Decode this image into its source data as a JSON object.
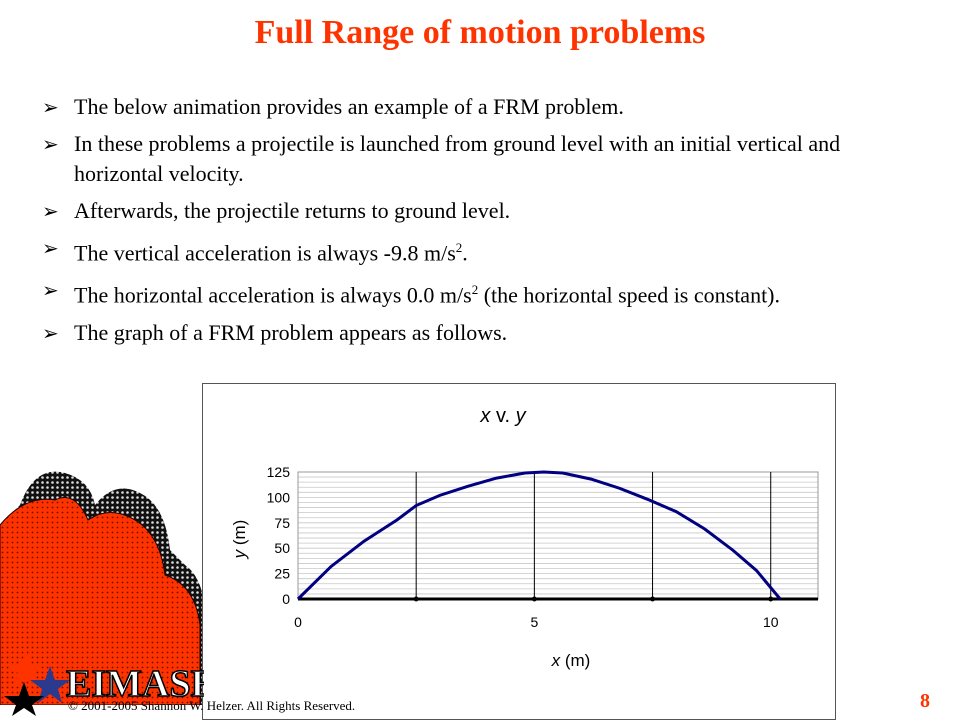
{
  "slide": {
    "title": "Full Range of motion  problems",
    "bullets": [
      {
        "text": "The below animation provides an example of a FRM problem."
      },
      {
        "text": "In these problems a projectile is launched from ground level with an initial vertical and horizontal velocity."
      },
      {
        "text": "Afterwards, the projectile returns to ground level."
      },
      {
        "text": "The vertical acceleration is always -9.8 m/s",
        "sup": "2",
        "after": "."
      },
      {
        "text": "The horizontal acceleration is always 0.0 m/s",
        "sup": "2",
        "after": " (the horizontal speed is constant)."
      },
      {
        "text": "The graph of a FRM problem appears as follows."
      }
    ],
    "bullet_icon": "arrow-bullet-icon",
    "logo_text": "EIMASES",
    "footer": "© 2001-2005 Shannon W. Helzer.  All Rights Reserved.",
    "page_number": "8",
    "colors": {
      "title": "#ff3300",
      "curve": "#000080",
      "mountain": "#ff3300"
    }
  },
  "chart_data": {
    "type": "line",
    "title_x": "x",
    "title_mid": " v. ",
    "title_y": "y",
    "xlabel_var": "x",
    "xlabel_unit": " (m)",
    "ylabel_var": "y",
    "ylabel_unit": " (m)",
    "xlim": [
      0,
      11
    ],
    "ylim": [
      0,
      125
    ],
    "x_ticks": [
      0,
      5,
      10
    ],
    "y_ticks": [
      0,
      25,
      50,
      75,
      100,
      125
    ],
    "grid": true,
    "series": [
      {
        "x": [
          0,
          0.7,
          1.4,
          2.1,
          2.5,
          3.0,
          3.6,
          4.2,
          4.8,
          5.2,
          5.6,
          6.2,
          6.8,
          7.4,
          8.0,
          8.6,
          9.2,
          9.7,
          10.2
        ],
        "y": [
          0,
          32,
          57,
          78,
          92,
          102,
          111,
          119,
          124,
          125,
          124,
          118,
          109,
          98,
          86,
          69,
          48,
          28,
          0
        ]
      }
    ],
    "markers_x": [
      2.5,
      5,
      7.5,
      10
    ]
  }
}
